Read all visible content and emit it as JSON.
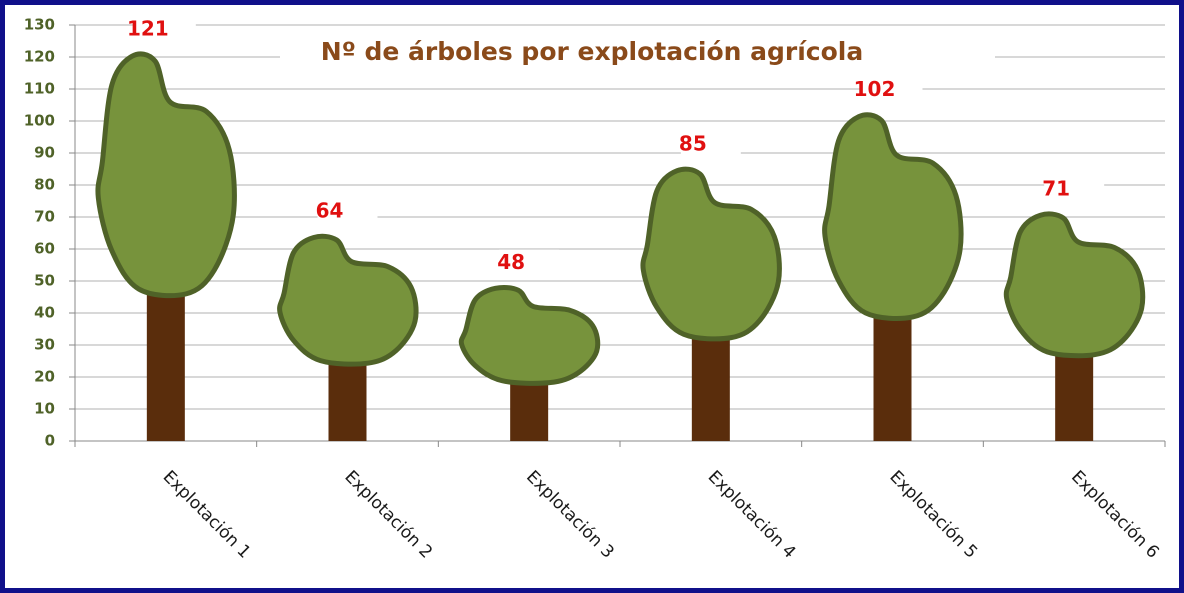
{
  "chart_data": {
    "type": "tree-pictograph",
    "title": "Nº de árboles por explotación agrícola",
    "categories": [
      "Explotación  1",
      "Explotación  2",
      "Explotación  3",
      "Explotación  4",
      "Explotación  5",
      "Explotación  6"
    ],
    "values": [
      121,
      64,
      48,
      85,
      102,
      71
    ],
    "ylim": [
      0,
      130
    ],
    "yticks": [
      0,
      10,
      20,
      30,
      40,
      50,
      60,
      70,
      80,
      90,
      100,
      110,
      120,
      130
    ],
    "grid": true,
    "canopy_color": "#77933c",
    "trunk_color": "#5a2d0c"
  }
}
